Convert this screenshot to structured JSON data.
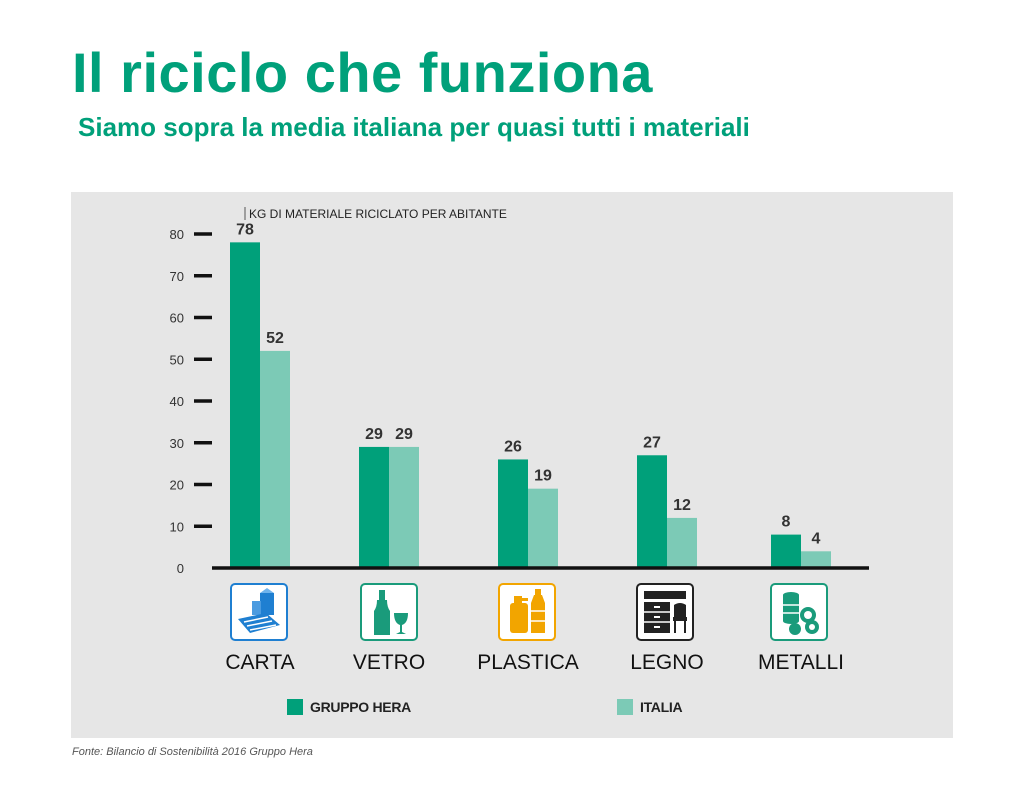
{
  "title": "Il riciclo che funziona",
  "subtitle": "Siamo sopra la media italiana per quasi tutti i materiali",
  "source": "Fonte: Bilancio di Sostenibilità 2016 Gruppo Hera",
  "colors": {
    "hera": "#00a07a",
    "italia": "#7ccab6",
    "title": "#00a07a",
    "panel": "#e6e6e6",
    "axis": "#111111",
    "icon_blue": "#1f7fd1",
    "icon_teal": "#1a9b7b",
    "icon_orange": "#f2a500",
    "icon_dark": "#222222"
  },
  "icons": [
    {
      "category": "CARTA",
      "name": "paper-carton-icon"
    },
    {
      "category": "VETRO",
      "name": "glass-bottle-icon"
    },
    {
      "category": "PLASTICA",
      "name": "plastic-bottle-icon"
    },
    {
      "category": "LEGNO",
      "name": "wood-furniture-icon"
    },
    {
      "category": "METALLI",
      "name": "metal-cans-icon"
    }
  ],
  "chart_data": {
    "type": "bar",
    "ylabel": "KG DI MATERIALE RICICLATO PER ABITANTE",
    "categories": [
      "CARTA",
      "VETRO",
      "PLASTICA",
      "LEGNO",
      "METALLI"
    ],
    "series": [
      {
        "name": "GRUPPO HERA",
        "values": [
          78,
          29,
          26,
          27,
          8
        ]
      },
      {
        "name": "ITALIA",
        "values": [
          52,
          29,
          19,
          12,
          4
        ]
      }
    ],
    "ylim": [
      0,
      80
    ],
    "yticks": [
      0,
      10,
      20,
      30,
      40,
      50,
      60,
      70,
      80
    ],
    "grid": false,
    "legend": "bottom"
  }
}
